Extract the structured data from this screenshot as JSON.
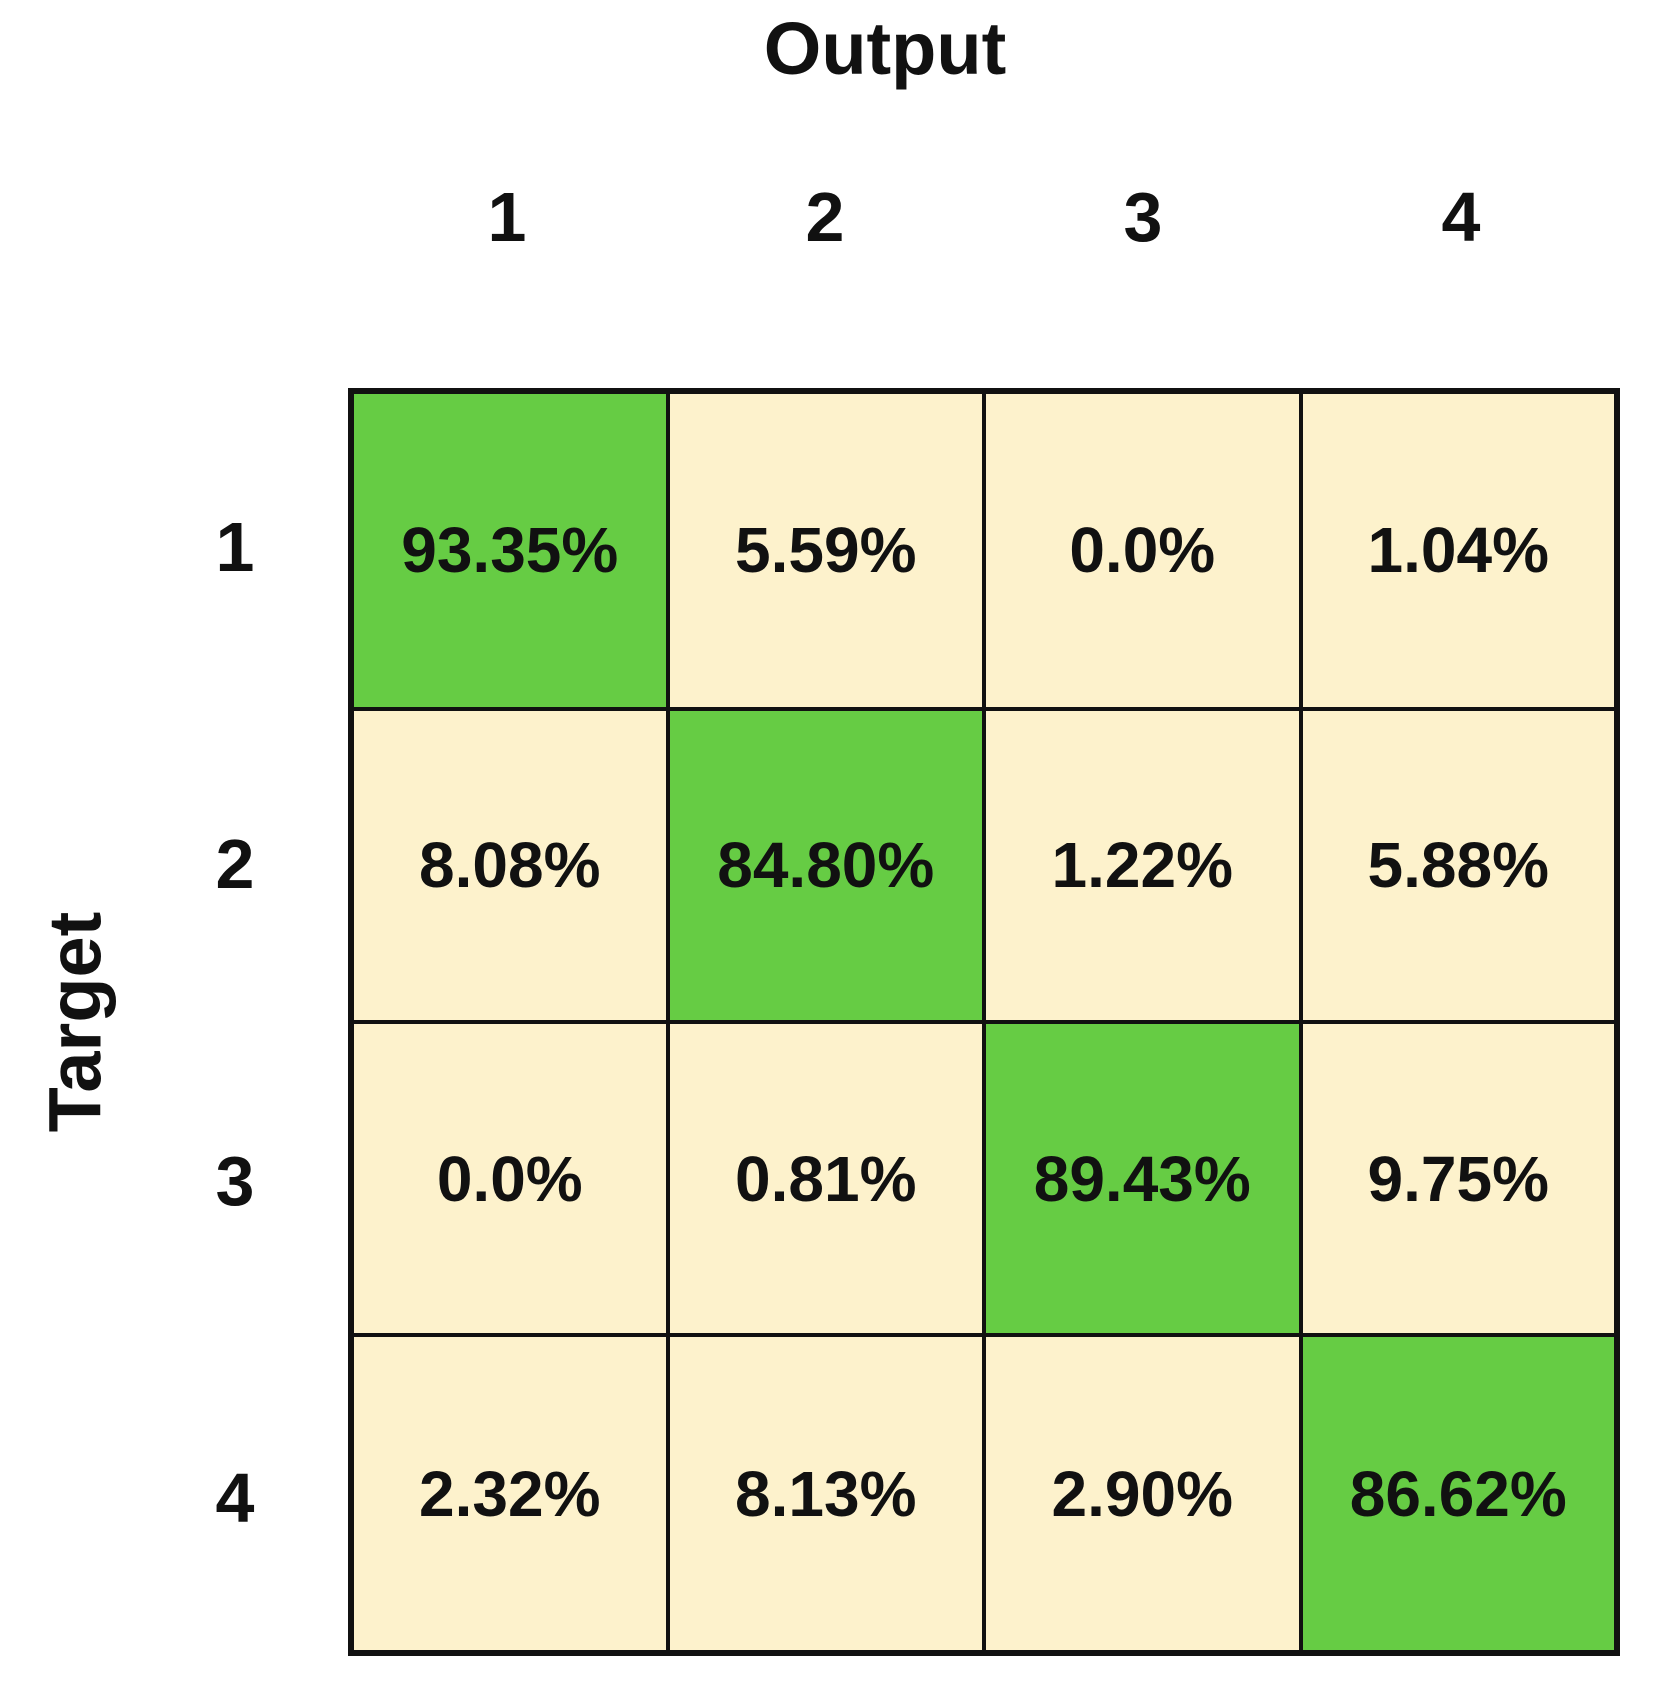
{
  "colors": {
    "diagonal_fill": "#66CC44",
    "off_diagonal_fill": "#FDF2CC",
    "grid_border": "#111111",
    "background": "#FFFFFF"
  },
  "chart_data": {
    "type": "heatmap",
    "title": "Output",
    "xlabel": "Output",
    "ylabel": "Target",
    "col_labels": [
      "1",
      "2",
      "3",
      "4"
    ],
    "row_labels": [
      "1",
      "2",
      "3",
      "4"
    ],
    "rows": [
      [
        "93.35%",
        "5.59%",
        "0.0%",
        "1.04%"
      ],
      [
        "8.08%",
        "84.80%",
        "1.22%",
        "5.88%"
      ],
      [
        "0.0%",
        "0.81%",
        "89.43%",
        "9.75%"
      ],
      [
        "2.32%",
        "8.13%",
        "2.90%",
        "86.62%"
      ]
    ],
    "values": [
      [
        93.35,
        5.59,
        0.0,
        1.04
      ],
      [
        8.08,
        84.8,
        1.22,
        5.88
      ],
      [
        0.0,
        0.81,
        89.43,
        9.75
      ],
      [
        2.32,
        8.13,
        2.9,
        86.62
      ]
    ],
    "highlight": "diagonal",
    "legend_position": "none",
    "grid": true
  }
}
